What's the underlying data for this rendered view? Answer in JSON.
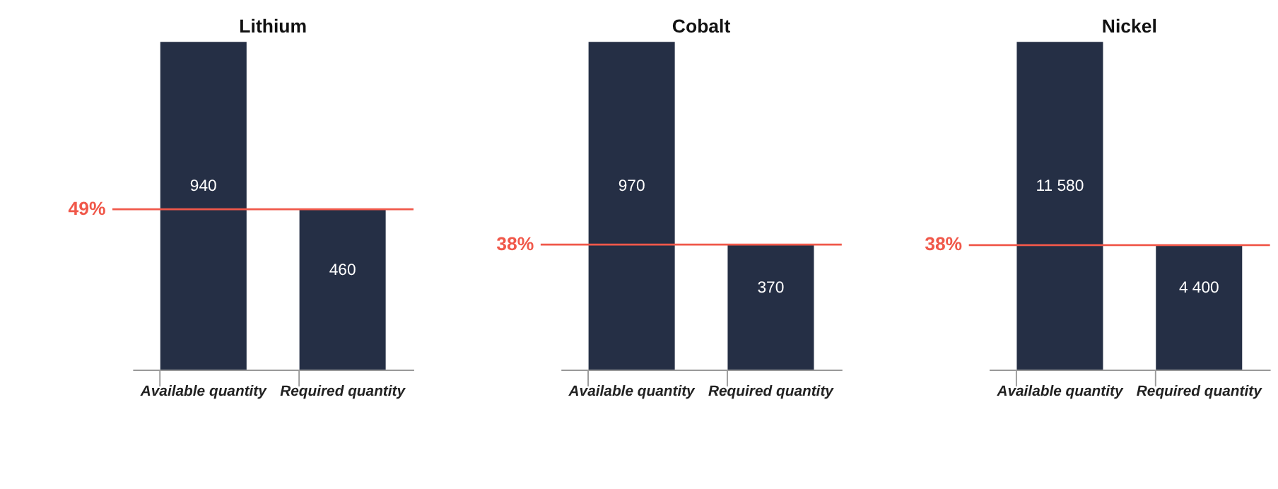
{
  "chart_data": [
    {
      "type": "bar",
      "title": "Lithium",
      "categories": [
        "Available quantity",
        "Required quantity"
      ],
      "values": [
        940,
        460
      ],
      "color": "#252f45",
      "data_labels": true,
      "tick_labels": "x",
      "grid": false,
      "ref_lines": [
        {
          "axis": "y",
          "value": 460,
          "color": "#f0584a"
        }
      ],
      "annotations": [
        "49%"
      ]
    },
    {
      "type": "bar",
      "title": "Cobalt",
      "categories": [
        "Available quantity",
        "Required quantity"
      ],
      "values": [
        970,
        370
      ],
      "color": "#252f45",
      "data_labels": true,
      "tick_labels": "x",
      "grid": false,
      "ref_lines": [
        {
          "axis": "y",
          "value": 370,
          "color": "#f0584a"
        }
      ],
      "annotations": [
        "38%"
      ]
    },
    {
      "type": "bar",
      "title": "Nickel",
      "categories": [
        "Available quantity",
        "Required quantity"
      ],
      "values": [
        11580,
        4400
      ],
      "color": "#252f45",
      "data_labels": true,
      "tick_labels": "x",
      "grid": false,
      "ref_lines": [
        {
          "axis": "y",
          "value": 4400,
          "color": "#f0584a"
        }
      ],
      "annotations": [
        "38%"
      ]
    }
  ]
}
